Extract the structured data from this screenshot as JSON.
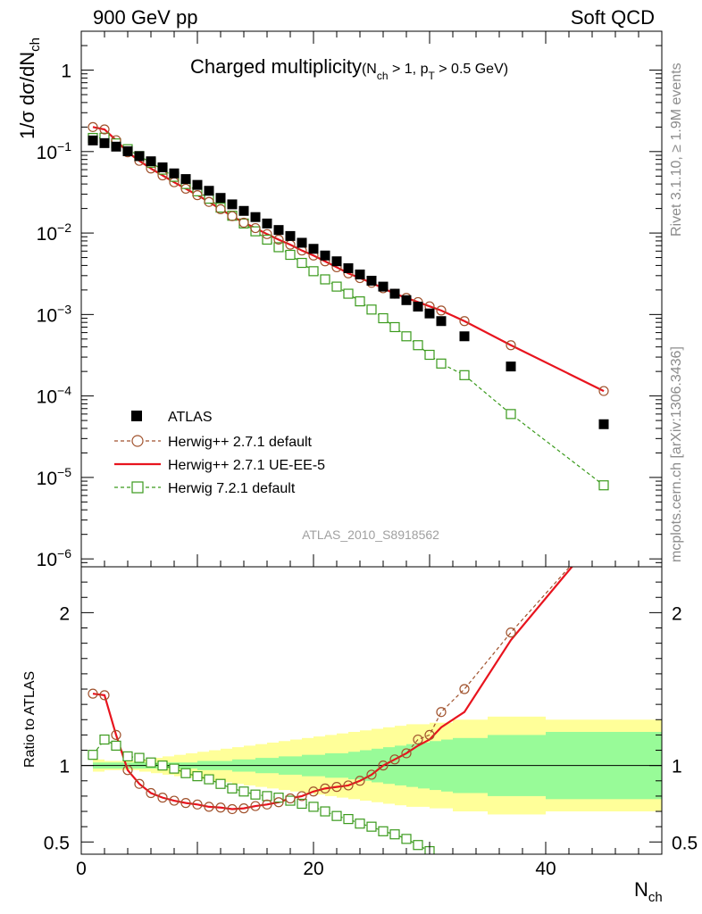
{
  "header": {
    "left": "900 GeV pp",
    "right": "Soft QCD"
  },
  "side_labels": {
    "rivet": "Rivet 3.1.10, ≥ 1.9M events",
    "mcplots": "mcplots.cern.ch [arXiv:1306.3436]"
  },
  "chart_data": [
    {
      "type": "scatter",
      "title_main": "Charged multiplicity",
      "title_cond": "(N",
      "title_cond_sub": "ch",
      "title_cond_mid": " > 1, p",
      "title_cond_sub2": "T",
      "title_cond_end": " > 0.5 GeV)",
      "ylabel": "1/σ dσ/dN",
      "ylabel_sub": "ch",
      "yscale": "log",
      "ylim": [
        8e-07,
        3
      ],
      "xlim": [
        0,
        50
      ],
      "yticks": [
        {
          "value": 1,
          "label": "1",
          "sup": ""
        },
        {
          "value": 0.1,
          "label": "10",
          "sup": "−1"
        },
        {
          "value": 0.01,
          "label": "10",
          "sup": "−2"
        },
        {
          "value": 0.001,
          "label": "10",
          "sup": "−3"
        },
        {
          "value": 0.0001,
          "label": "10",
          "sup": "−4"
        },
        {
          "value": 1e-05,
          "label": "10",
          "sup": "−5"
        },
        {
          "value": 1e-06,
          "label": "10",
          "sup": "−6"
        }
      ],
      "watermark": "ATLAS_2010_S8918562",
      "legend_position": "bottom-left",
      "series": [
        {
          "name": "ATLAS",
          "style": "filled-square",
          "color": "#000000",
          "x": [
            1,
            2,
            3,
            4,
            5,
            6,
            7,
            8,
            9,
            10,
            11,
            12,
            13,
            14,
            15,
            16,
            17,
            18,
            19,
            20,
            21,
            22,
            23,
            24,
            25,
            26,
            27,
            28,
            29,
            30,
            31,
            33,
            37,
            45
          ],
          "y": [
            0.137,
            0.127,
            0.115,
            0.101,
            0.088,
            0.076,
            0.064,
            0.054,
            0.046,
            0.039,
            0.033,
            0.027,
            0.0225,
            0.0187,
            0.0157,
            0.0131,
            0.0109,
            0.0092,
            0.0076,
            0.0064,
            0.0053,
            0.0045,
            0.0037,
            0.0031,
            0.0026,
            0.0022,
            0.0018,
            0.0015,
            0.00125,
            0.00103,
            0.00083,
            0.00054,
            0.00023,
            4.5e-05
          ]
        },
        {
          "name": "Herwig++ 2.7.1 default",
          "style": "open-circle-dashed",
          "color": "#a0522d",
          "x": [
            1,
            2,
            3,
            4,
            5,
            6,
            7,
            8,
            9,
            10,
            11,
            12,
            13,
            14,
            15,
            16,
            17,
            18,
            19,
            20,
            21,
            22,
            23,
            24,
            25,
            26,
            27,
            28,
            29,
            30,
            31,
            33,
            37,
            45
          ],
          "y": [
            0.2,
            0.187,
            0.138,
            0.098,
            0.077,
            0.062,
            0.051,
            0.042,
            0.035,
            0.0292,
            0.0241,
            0.0196,
            0.0161,
            0.0134,
            0.0115,
            0.0097,
            0.0083,
            0.0072,
            0.0061,
            0.0053,
            0.0045,
            0.0038,
            0.0032,
            0.0028,
            0.00245,
            0.0021,
            0.0018,
            0.0016,
            0.00142,
            0.00126,
            0.00112,
            0.00083,
            0.00042,
            0.000115
          ]
        },
        {
          "name": "Herwig++ 2.7.1 UE-EE-5",
          "style": "solid-line",
          "color": "#e8141e",
          "x": [
            1,
            2,
            3,
            4,
            5,
            6,
            7,
            8,
            9,
            10,
            11,
            12,
            13,
            14,
            15,
            16,
            17,
            18,
            19,
            20,
            21,
            22,
            23,
            24,
            25,
            26,
            27,
            28,
            29,
            30,
            31,
            33,
            37,
            45
          ],
          "y": [
            0.2,
            0.187,
            0.138,
            0.098,
            0.077,
            0.062,
            0.051,
            0.042,
            0.035,
            0.0292,
            0.0241,
            0.0196,
            0.0161,
            0.0134,
            0.0115,
            0.0097,
            0.0083,
            0.0072,
            0.0061,
            0.0053,
            0.0045,
            0.0038,
            0.0032,
            0.0028,
            0.00245,
            0.0021,
            0.0018,
            0.0016,
            0.00142,
            0.00126,
            0.00112,
            0.00083,
            0.00042,
            0.000115
          ]
        },
        {
          "name": "Herwig 7.2.1 default",
          "style": "open-square-dashed",
          "color": "#3a9a1c",
          "x": [
            1,
            2,
            3,
            4,
            5,
            6,
            7,
            8,
            9,
            10,
            11,
            12,
            13,
            14,
            15,
            16,
            17,
            18,
            19,
            20,
            21,
            22,
            23,
            24,
            25,
            26,
            27,
            28,
            29,
            30,
            31,
            33,
            37,
            45
          ],
          "y": [
            0.147,
            0.148,
            0.126,
            0.107,
            0.088,
            0.073,
            0.06,
            0.049,
            0.04,
            0.0325,
            0.0264,
            0.0205,
            0.0163,
            0.0131,
            0.0105,
            0.0083,
            0.0067,
            0.0054,
            0.0043,
            0.0034,
            0.0027,
            0.0022,
            0.0018,
            0.00145,
            0.00115,
            0.0009,
            0.0007,
            0.00054,
            0.00042,
            0.00032,
            0.00025,
            0.00018,
            6e-05,
            8e-06
          ]
        }
      ]
    },
    {
      "type": "line",
      "ylabel": "Ratio to ATLAS",
      "xlabel": "N",
      "xlabel_sub": "ch",
      "xlim": [
        0,
        50
      ],
      "ylim": [
        0.42,
        2.3
      ],
      "xticks": [
        {
          "value": 0,
          "label": "0"
        },
        {
          "value": 20,
          "label": "20"
        },
        {
          "value": 40,
          "label": "40"
        }
      ],
      "yticks": [
        {
          "value": 0.5,
          "label": "0.5"
        },
        {
          "value": 1,
          "label": "1"
        },
        {
          "value": 2,
          "label": "2"
        }
      ],
      "bands": {
        "edges": [
          1,
          2,
          3,
          4,
          5,
          6,
          7,
          8,
          9,
          10,
          11,
          12,
          13,
          14,
          15,
          16,
          17,
          18,
          19,
          20,
          21,
          22,
          23,
          24,
          25,
          26,
          27,
          28,
          29,
          30,
          31,
          32,
          35,
          40,
          50
        ],
        "stat_hw": [
          0.02,
          0.02,
          0.02,
          0.02,
          0.02,
          0.02,
          0.02,
          0.02,
          0.02,
          0.03,
          0.03,
          0.03,
          0.04,
          0.04,
          0.05,
          0.05,
          0.06,
          0.06,
          0.07,
          0.07,
          0.08,
          0.08,
          0.09,
          0.1,
          0.11,
          0.12,
          0.13,
          0.14,
          0.15,
          0.16,
          0.17,
          0.18,
          0.2,
          0.22
        ],
        "syst_hw": [
          0.04,
          0.03,
          0.03,
          0.03,
          0.04,
          0.05,
          0.06,
          0.07,
          0.08,
          0.09,
          0.1,
          0.11,
          0.12,
          0.13,
          0.14,
          0.15,
          0.16,
          0.17,
          0.18,
          0.19,
          0.2,
          0.21,
          0.22,
          0.23,
          0.24,
          0.25,
          0.26,
          0.27,
          0.27,
          0.28,
          0.28,
          0.3,
          0.32,
          0.3
        ]
      },
      "series": [
        {
          "name": "Herwig++ 2.7.1 default",
          "color": "#a0522d",
          "x": [
            1,
            2,
            3,
            4,
            5,
            6,
            7,
            8,
            9,
            10,
            11,
            12,
            13,
            14,
            15,
            16,
            17,
            18,
            19,
            20,
            21,
            22,
            23,
            24,
            25,
            26,
            27,
            28,
            29,
            30,
            31,
            33,
            37,
            45
          ],
          "y": [
            1.47,
            1.46,
            1.2,
            0.97,
            0.88,
            0.82,
            0.79,
            0.77,
            0.755,
            0.745,
            0.73,
            0.725,
            0.715,
            0.72,
            0.735,
            0.745,
            0.76,
            0.785,
            0.8,
            0.83,
            0.85,
            0.86,
            0.87,
            0.9,
            0.94,
            1.0,
            1.04,
            1.08,
            1.17,
            1.2,
            1.35,
            1.5,
            1.87,
            2.55
          ]
        },
        {
          "name": "Herwig++ 2.7.1 UE-EE-5",
          "color": "#e8141e",
          "x": [
            1,
            2,
            3,
            4,
            5,
            6,
            7,
            8,
            9,
            10,
            11,
            12,
            13,
            14,
            15,
            16,
            17,
            18,
            19,
            20,
            21,
            22,
            23,
            24,
            25,
            26,
            27,
            28,
            29,
            30,
            31,
            33,
            37,
            45
          ],
          "y": [
            1.47,
            1.46,
            1.2,
            0.97,
            0.88,
            0.82,
            0.79,
            0.77,
            0.755,
            0.745,
            0.73,
            0.725,
            0.715,
            0.72,
            0.735,
            0.745,
            0.76,
            0.785,
            0.8,
            0.83,
            0.85,
            0.86,
            0.87,
            0.9,
            0.94,
            1.0,
            1.04,
            1.08,
            1.13,
            1.17,
            1.25,
            1.35,
            1.82,
            2.55
          ]
        },
        {
          "name": "Herwig 7.2.1 default",
          "color": "#3a9a1c",
          "x": [
            1,
            2,
            3,
            4,
            5,
            6,
            7,
            8,
            9,
            10,
            11,
            12,
            13,
            14,
            15,
            16,
            17,
            18,
            19,
            20,
            21,
            22,
            23,
            24,
            25,
            26,
            27,
            28,
            29,
            30
          ],
          "y": [
            1.07,
            1.17,
            1.13,
            1.06,
            1.05,
            1.02,
            1.0,
            0.98,
            0.95,
            0.93,
            0.91,
            0.88,
            0.85,
            0.83,
            0.81,
            0.8,
            0.79,
            0.77,
            0.75,
            0.73,
            0.7,
            0.67,
            0.65,
            0.62,
            0.6,
            0.57,
            0.55,
            0.52,
            0.48,
            0.44
          ]
        }
      ]
    }
  ]
}
